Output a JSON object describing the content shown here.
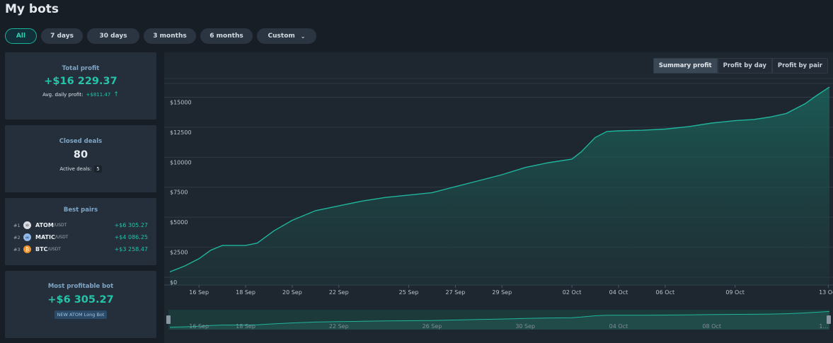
{
  "page": {
    "title": "My bots"
  },
  "filters": [
    {
      "label": "All",
      "active": true
    },
    {
      "label": "7 days"
    },
    {
      "label": "30 days"
    },
    {
      "label": "3 months"
    },
    {
      "label": "6 months"
    },
    {
      "label": "Custom",
      "icon": "chevron-down-icon"
    }
  ],
  "total_profit": {
    "title": "Total profit",
    "value": "+$16 229.37",
    "avg_label": "Avg. daily profit:",
    "avg_value": "+$811.47",
    "trend_icon": "arrow-up-icon"
  },
  "closed_deals": {
    "title": "Closed deals",
    "value": "80",
    "active_label": "Active deals:",
    "active_value": "5"
  },
  "best_pairs": {
    "title": "Best pairs",
    "items": [
      {
        "rank": "#1",
        "base": "ATOM",
        "quote": "/USDT",
        "value": "+$6 305.27",
        "icon": "atom-coin-icon"
      },
      {
        "rank": "#2",
        "base": "MATIC",
        "quote": "/USDT",
        "value": "+$4 086.25",
        "icon": "matic-coin-icon"
      },
      {
        "rank": "#3",
        "base": "BTC",
        "quote": "/USDT",
        "value": "+$3 258.47",
        "icon": "btc-coin-icon"
      }
    ]
  },
  "most_profitable": {
    "title": "Most profitable bot",
    "value": "+$6 305.27",
    "bot_name": "NEW ATOM Long Bot"
  },
  "chart_tabs": [
    {
      "label": "Summary profit",
      "active": true
    },
    {
      "label": "Profit by day"
    },
    {
      "label": "Profit by pair"
    }
  ],
  "colors": {
    "accent": "#25c3a8",
    "line": "#1fb59c",
    "background": "#181e26"
  },
  "chart_data": {
    "type": "area",
    "title": "",
    "xlabel": "",
    "ylabel": "",
    "ylim": [
      0,
      16500
    ],
    "xlim": [
      14.75,
      43.05
    ],
    "x_ticks": [
      16,
      18,
      20,
      22,
      25,
      27,
      29,
      32,
      34,
      36,
      39,
      43
    ],
    "x_tick_labels": [
      "16 Sep",
      "18 Sep",
      "20 Sep",
      "22 Sep",
      "25 Sep",
      "27 Sep",
      "29 Sep",
      "02 Oct",
      "04 Oct",
      "06 Oct",
      "09 Oct",
      "13 Oct"
    ],
    "y_ticks": [
      0,
      2500,
      5000,
      7500,
      10000,
      12500,
      15000
    ],
    "y_tick_labels": [
      "$0",
      "$2500",
      "$5000",
      "$7500",
      "$10000",
      "$12500",
      "$15000"
    ],
    "grid": true,
    "series": [
      {
        "x": [
          14.75,
          15.4,
          16.0,
          16.5,
          17.0,
          17.5,
          18.0,
          18.5,
          19.2,
          20.0,
          21.0,
          22.0,
          23.0,
          24.0,
          25.0,
          26.0,
          27.0,
          28.0,
          29.0,
          30.0,
          31.0,
          32.0,
          32.4,
          33.0,
          33.5,
          34.0,
          35.0,
          36.0,
          37.0,
          38.0,
          39.0,
          39.8,
          40.5,
          41.2,
          42.0,
          42.5,
          43.05
        ],
        "y": [
          800,
          1300,
          1900,
          2600,
          3000,
          3000,
          3000,
          3200,
          4200,
          5100,
          5900,
          6300,
          6700,
          7000,
          7200,
          7400,
          7900,
          8400,
          8900,
          9500,
          9900,
          10200,
          10800,
          12000,
          12500,
          12550,
          12600,
          12700,
          12900,
          13200,
          13400,
          13500,
          13700,
          14000,
          14800,
          15500,
          16200
        ]
      }
    ],
    "navigator": {
      "x_ticks": [
        16,
        18,
        22,
        26,
        30,
        34,
        38,
        42.8
      ],
      "x_tick_labels": [
        "16 Sep",
        "18 Sep",
        "22 Sep",
        "26 Sep",
        "30 Sep",
        "04 Oct",
        "08 Oct",
        "1..."
      ]
    }
  }
}
